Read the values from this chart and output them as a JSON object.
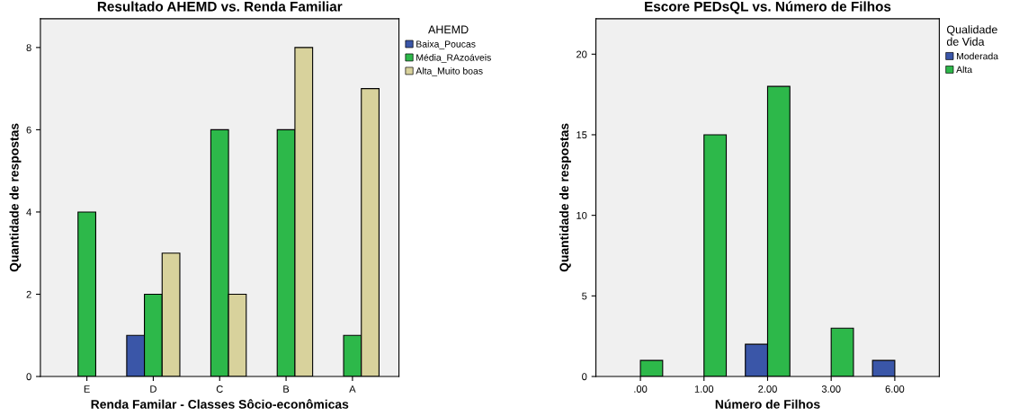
{
  "chart_data": [
    {
      "type": "bar",
      "title": "Resultado AHEMD vs. Renda Familiar",
      "xlabel": "Renda Familar - Classes Sôcio-econômicas",
      "ylabel": "Quantidade de respostas",
      "legend_title": "AHEMD",
      "legend": "top right",
      "grid": false,
      "categories": [
        "E",
        "D",
        "C",
        "B",
        "A"
      ],
      "ylim": [
        0,
        8.7
      ],
      "yticks": [
        0,
        2,
        4,
        6,
        8
      ],
      "series": [
        {
          "name": "Baixa_Poucas",
          "color": "#3a56a8",
          "values": [
            null,
            1,
            null,
            null,
            null
          ]
        },
        {
          "name": "Média_RAzoáveis",
          "color": "#2db84a",
          "values": [
            4,
            2,
            6,
            6,
            1
          ]
        },
        {
          "name": "Alta_Muito boas",
          "color": "#d8d29c",
          "values": [
            null,
            3,
            2,
            8,
            7
          ]
        }
      ]
    },
    {
      "type": "bar",
      "title": "Escore PEDsQL vs. Número de Filhos",
      "xlabel": "Número de Filhos",
      "ylabel": "Quantidade de respostas",
      "legend_title": "Qualidade\nde Vida",
      "legend": "top right",
      "grid": false,
      "categories": [
        ".00",
        "1.00",
        "2.00",
        "3.00",
        "6.00"
      ],
      "ylim": [
        0,
        22.2
      ],
      "yticks": [
        0,
        5,
        10,
        15,
        20
      ],
      "series": [
        {
          "name": "Moderada",
          "color": "#3a56a8",
          "values": [
            null,
            null,
            2,
            null,
            1
          ]
        },
        {
          "name": "Alta",
          "color": "#2db84a",
          "values": [
            1,
            15,
            18,
            3,
            null
          ]
        }
      ]
    }
  ]
}
